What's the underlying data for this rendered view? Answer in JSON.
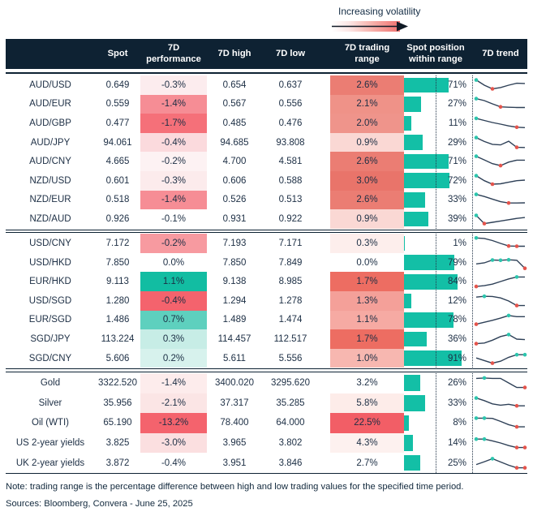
{
  "legend": {
    "label": "Increasing volatility"
  },
  "header": {
    "spot": "Spot",
    "performance": "7D performance",
    "high": "7D high",
    "low": "7D low",
    "range": "7D trading range",
    "position": "Spot position within range",
    "trend": "7D trend"
  },
  "colors": {
    "navy": "#0e2233",
    "text": "#1c2e44",
    "teal": "#13bfa6",
    "red": "#f4636d",
    "spark_line": "#2e4057",
    "dot_high": "#2cc5ad",
    "dot_low": "#e4544c",
    "dotted_line": "#24364a"
  },
  "chart_data": {
    "type": "table",
    "columns": [
      "",
      "Spot",
      "7D performance",
      "7D high",
      "7D low",
      "7D trading range",
      "Spot position within range",
      "7D trend"
    ],
    "sections": [
      {
        "tall": false,
        "rows": [
          {
            "label": "AUD/USD",
            "spot": "0.649",
            "perf": "-0.3%",
            "perf_bg": "#fcecee",
            "high": "0.654",
            "low": "0.637",
            "range": "2.6%",
            "range_bg": "#eb7d73",
            "position": 71,
            "position_label": "71%",
            "spark": {
              "y": [
                0.9,
                0.5,
                0.22,
                0.32,
                0.5,
                0.65,
                0.63
              ],
              "dots": [
                [
                  0,
                  "h"
                ],
                [
                  2,
                  "l"
                ]
              ]
            }
          },
          {
            "label": "AUD/EUR",
            "spot": "0.559",
            "perf": "-1.4%",
            "perf_bg": "#f68d95",
            "high": "0.567",
            "low": "0.556",
            "range": "2.1%",
            "range_bg": "#ef9288",
            "position": 27,
            "position_label": "27%",
            "spark": {
              "y": [
                0.9,
                0.75,
                0.5,
                0.27,
                0.24,
                0.22,
                0.22
              ],
              "dots": [
                [
                  0,
                  "h"
                ],
                [
                  3,
                  "l"
                ]
              ]
            }
          },
          {
            "label": "AUD/GBP",
            "spot": "0.477",
            "perf": "-1.7%",
            "perf_bg": "#f57079",
            "high": "0.485",
            "low": "0.476",
            "range": "2.0%",
            "range_bg": "#ef948b",
            "position": 11,
            "position_label": "11%",
            "spark": {
              "y": [
                0.88,
                0.72,
                0.56,
                0.44,
                0.3,
                0.2,
                0.17
              ],
              "dots": [
                [
                  0,
                  "h"
                ],
                [
                  5,
                  "l"
                ]
              ]
            }
          },
          {
            "label": "AUD/JPY",
            "spot": "94.061",
            "perf": "-0.4%",
            "perf_bg": "#fbdadd",
            "high": "94.685",
            "low": "93.808",
            "range": "0.9%",
            "range_bg": "#fad8d4",
            "position": 29,
            "position_label": "29%",
            "spark": {
              "y": [
                0.9,
                0.6,
                0.38,
                0.34,
                0.62,
                0.15,
                0.14
              ],
              "dots": [
                [
                  0,
                  "h"
                ],
                [
                  5,
                  "l"
                ]
              ]
            }
          },
          {
            "label": "AUD/CNY",
            "spot": "4.665",
            "perf": "-0.2%",
            "perf_bg": "#fdf2f3",
            "high": "4.700",
            "low": "4.581",
            "range": "2.6%",
            "range_bg": "#eb7d73",
            "position": 71,
            "position_label": "71%",
            "spark": {
              "y": [
                0.9,
                0.62,
                0.33,
                0.18,
                0.45,
                0.6,
                0.6
              ],
              "dots": [
                [
                  0,
                  "h"
                ],
                [
                  3,
                  "l"
                ]
              ]
            }
          },
          {
            "label": "NZD/USD",
            "spot": "0.601",
            "perf": "-0.3%",
            "perf_bg": "#fcebec",
            "high": "0.606",
            "low": "0.588",
            "range": "3.0%",
            "range_bg": "#e9746a",
            "position": 72,
            "position_label": "72%",
            "spark": {
              "y": [
                0.9,
                0.52,
                0.25,
                0.28,
                0.4,
                0.52,
                0.56
              ],
              "dots": [
                [
                  0,
                  "h"
                ],
                [
                  2,
                  "l"
                ]
              ]
            }
          },
          {
            "label": "NZD/EUR",
            "spot": "0.518",
            "perf": "-1.4%",
            "perf_bg": "#f68d95",
            "high": "0.526",
            "low": "0.513",
            "range": "2.6%",
            "range_bg": "#eb7d73",
            "position": 33,
            "position_label": "33%",
            "spark": {
              "y": [
                0.9,
                0.74,
                0.54,
                0.34,
                0.24,
                0.24,
                0.25
              ],
              "dots": [
                [
                  0,
                  "h"
                ],
                [
                  4,
                  "l"
                ]
              ]
            }
          },
          {
            "label": "NZD/AUD",
            "spot": "0.926",
            "perf": "-0.1%",
            "perf_bg": "#ffffff",
            "high": "0.931",
            "low": "0.922",
            "range": "0.9%",
            "range_bg": "#fad8d4",
            "position": 39,
            "position_label": "39%",
            "spark": {
              "y": [
                0.78,
                0.15,
                0.25,
                0.35,
                0.45,
                0.55,
                0.62
              ],
              "dots": [
                [
                  0,
                  "h"
                ],
                [
                  1,
                  "l"
                ]
              ]
            }
          }
        ]
      },
      {
        "tall": false,
        "rows": [
          {
            "label": "USD/CNY",
            "spot": "7.172",
            "perf": "-0.2%",
            "perf_bg": "#f79aa0",
            "high": "7.193",
            "low": "7.171",
            "range": "0.3%",
            "range_bg": "#fdeeec",
            "position": 1,
            "position_label": "1%",
            "spark": {
              "y": [
                0.92,
                0.88,
                0.72,
                0.5,
                0.3,
                0.28,
                0.28
              ],
              "dots": [
                [
                  0,
                  "h"
                ],
                [
                  4,
                  "l"
                ],
                [
                  5,
                  "l"
                ]
              ]
            }
          },
          {
            "label": "USD/HKD",
            "spot": "7.850",
            "perf": "0.0%",
            "perf_bg": "#ffffff",
            "high": "7.850",
            "low": "7.849",
            "range": "0.0%",
            "range_bg": "#ffffff",
            "position": 79,
            "position_label": "79%",
            "spark": {
              "y": [
                0.42,
                0.5,
                0.72,
                0.7,
                0.74,
                0.7,
                0.08
              ],
              "dots": [
                [
                  2,
                  "h"
                ],
                [
                  3,
                  "h"
                ],
                [
                  4,
                  "h"
                ],
                [
                  6,
                  "l"
                ]
              ]
            }
          },
          {
            "label": "EUR/HKD",
            "spot": "9.113",
            "perf": "1.1%",
            "perf_bg": "#12bda2",
            "high": "9.138",
            "low": "8.985",
            "range": "1.7%",
            "range_bg": "#ed6d62",
            "position": 84,
            "position_label": "84%",
            "spark": {
              "y": [
                0.12,
                0.18,
                0.3,
                0.5,
                0.7,
                0.85,
                0.85
              ],
              "dots": [
                [
                  0,
                  "l"
                ],
                [
                  5,
                  "h"
                ]
              ]
            }
          },
          {
            "label": "USD/SGD",
            "spot": "1.280",
            "perf": "-0.4%",
            "perf_bg": "#f4636d",
            "high": "1.294",
            "low": "1.278",
            "range": "1.3%",
            "range_bg": "#f4a099",
            "position": 12,
            "position_label": "12%",
            "spark": {
              "y": [
                0.8,
                0.86,
                0.85,
                0.74,
                0.5,
                0.15,
                0.15
              ],
              "dots": [
                [
                  1,
                  "h"
                ],
                [
                  5,
                  "l"
                ]
              ]
            }
          },
          {
            "label": "EUR/SGD",
            "spot": "1.486",
            "perf": "0.7%",
            "perf_bg": "#5ed0be",
            "high": "1.489",
            "low": "1.474",
            "range": "1.1%",
            "range_bg": "#f6aaa3",
            "position": 78,
            "position_label": "78%",
            "spark": {
              "y": [
                0.15,
                0.3,
                0.45,
                0.62,
                0.82,
                0.73,
                0.73
              ],
              "dots": [
                [
                  0,
                  "l"
                ],
                [
                  4,
                  "h"
                ]
              ]
            }
          },
          {
            "label": "SGD/JPY",
            "spot": "113.224",
            "perf": "0.3%",
            "perf_bg": "#c7ede6",
            "high": "114.457",
            "low": "112.517",
            "range": "1.7%",
            "range_bg": "#ed6d62",
            "position": 36,
            "position_label": "36%",
            "spark": {
              "y": [
                0.15,
                0.2,
                0.42,
                0.7,
                0.85,
                0.5,
                0.46
              ],
              "dots": [
                [
                  0,
                  "l"
                ],
                [
                  4,
                  "h"
                ]
              ]
            }
          },
          {
            "label": "SGD/CNY",
            "spot": "5.606",
            "perf": "0.2%",
            "perf_bg": "#d7f2ed",
            "high": "5.611",
            "low": "5.556",
            "range": "1.0%",
            "range_bg": "#f7b7b0",
            "position": 91,
            "position_label": "91%",
            "spark": {
              "y": [
                0.55,
                0.35,
                0.15,
                0.3,
                0.6,
                0.8,
                0.8
              ],
              "dots": [
                [
                  2,
                  "l"
                ],
                [
                  5,
                  "h"
                ],
                [
                  6,
                  "h"
                ]
              ]
            }
          }
        ]
      },
      {
        "tall": true,
        "rows": [
          {
            "label": "Gold",
            "spot": "3322.520",
            "perf": "-1.4%",
            "perf_bg": "#fdecec",
            "high": "3400.020",
            "low": "3295.620",
            "range": "3.2%",
            "range_bg": "#ffffff",
            "position": 26,
            "position_label": "26%",
            "spark": {
              "y": [
                0.85,
                0.88,
                0.85,
                0.85,
                0.5,
                0.15,
                0.15
              ],
              "dots": [
                [
                  1,
                  "h"
                ],
                [
                  6,
                  "l"
                ]
              ]
            }
          },
          {
            "label": "Silver",
            "spot": "35.956",
            "perf": "-2.1%",
            "perf_bg": "#fbe5e5",
            "high": "37.317",
            "low": "35.285",
            "range": "5.8%",
            "range_bg": "#fdece9",
            "position": 33,
            "position_label": "33%",
            "spark": {
              "y": [
                0.9,
                0.7,
                0.45,
                0.35,
                0.42,
                0.3,
                0.3
              ],
              "dots": [
                [
                  0,
                  "h"
                ],
                [
                  5,
                  "l"
                ]
              ]
            }
          },
          {
            "label": "Oil (WTI)",
            "spot": "65.190",
            "perf": "-13.2%",
            "perf_bg": "#f4636d",
            "high": "78.400",
            "low": "64.000",
            "range": "22.5%",
            "range_bg": "#f25e66",
            "position": 8,
            "position_label": "8%",
            "spark": {
              "y": [
                0.85,
                0.85,
                0.83,
                0.6,
                0.35,
                0.18,
                0.18
              ],
              "dots": [
                [
                  0,
                  "h"
                ],
                [
                  1,
                  "h"
                ],
                [
                  5,
                  "l"
                ]
              ]
            }
          },
          {
            "label": "US 2-year yields",
            "spot": "3.825",
            "perf": "-3.0%",
            "perf_bg": "#fbdfe0",
            "high": "3.965",
            "low": "3.802",
            "range": "4.3%",
            "range_bg": "#fdf1ef",
            "position": 14,
            "position_label": "14%",
            "spark": {
              "y": [
                0.8,
                0.8,
                0.66,
                0.5,
                0.3,
                0.15,
                0.15
              ],
              "dots": [
                [
                  0,
                  "h"
                ],
                [
                  1,
                  "h"
                ],
                [
                  5,
                  "l"
                ],
                [
                  6,
                  "l"
                ]
              ]
            }
          },
          {
            "label": "UK 2-year yields",
            "spot": "3.872",
            "perf": "-0.4%",
            "perf_bg": "#ffffff",
            "high": "3.951",
            "low": "3.846",
            "range": "2.7%",
            "range_bg": "#ffffff",
            "position": 25,
            "position_label": "25%",
            "spark": {
              "y": [
                0.4,
                0.62,
                0.85,
                0.6,
                0.35,
                0.15,
                0.15
              ],
              "dots": [
                [
                  2,
                  "h"
                ],
                [
                  5,
                  "l"
                ],
                [
                  6,
                  "l"
                ]
              ]
            }
          }
        ]
      }
    ]
  },
  "footer": {
    "note": "Note: trading range is the percentage difference between high and low trading values for the specified time period.",
    "sources": "Sources: Bloomberg, Convera - June 25, 2025"
  }
}
